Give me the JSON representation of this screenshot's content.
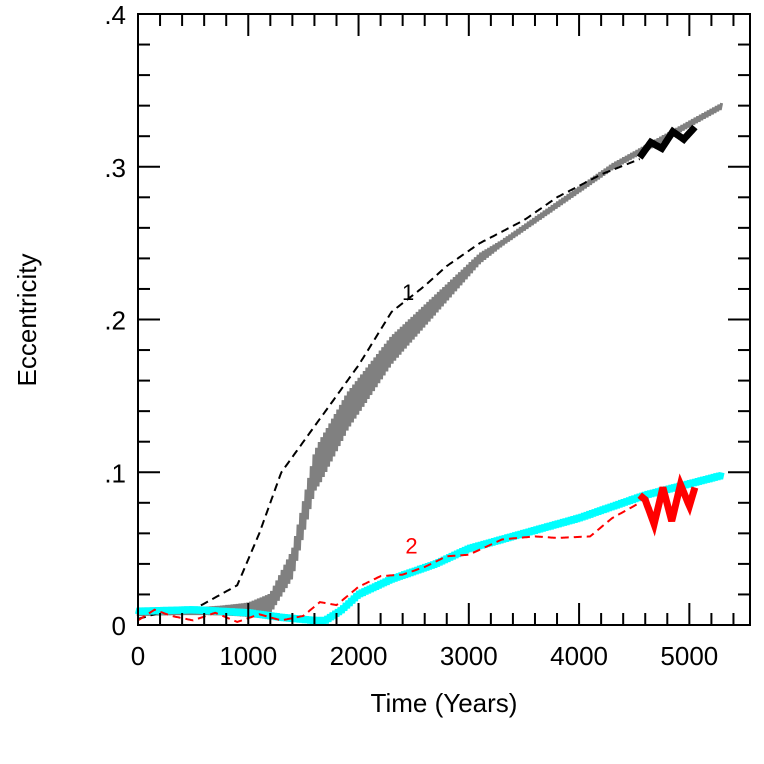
{
  "chart_data": {
    "type": "line",
    "title": "",
    "xlabel": "Time (Years)",
    "ylabel": "Eccentricity",
    "xlim": [
      0,
      5550
    ],
    "ylim": [
      0,
      0.4
    ],
    "xticks": [
      0,
      1000,
      2000,
      3000,
      4000,
      5000
    ],
    "xtick_labels": [
      "0",
      "1000",
      "2000",
      "3000",
      "4000",
      "5000"
    ],
    "yticks": [
      0,
      0.1,
      0.2,
      0.3,
      0.4
    ],
    "ytick_labels": [
      "0",
      ".1",
      ".2",
      ".3",
      ".4"
    ],
    "grid": false,
    "annotations": [
      {
        "text": "1",
        "x": 2450,
        "y": 0.218,
        "color": "#000000"
      },
      {
        "text": "2",
        "x": 2480,
        "y": 0.052,
        "color": "#ff0000"
      }
    ],
    "series": [
      {
        "style": "gray-oscillating",
        "color": "#808080",
        "x": [
          0,
          500,
          1000,
          1200,
          1400,
          1600,
          1900,
          2300,
          2700,
          3100,
          3700,
          4300,
          4800,
          5300
        ],
        "y": [
          0.008,
          0.009,
          0.01,
          0.014,
          0.04,
          0.1,
          0.14,
          0.18,
          0.21,
          0.24,
          0.27,
          0.3,
          0.32,
          0.34
        ]
      },
      {
        "style": "black-dashed",
        "color": "#000000",
        "x": [
          0,
          200,
          500,
          700,
          900,
          1100,
          1300,
          1600,
          2000,
          2300,
          2600,
          2800,
          3100,
          3500,
          3800,
          4200,
          4550
        ],
        "y": [
          0.004,
          0.008,
          0.01,
          0.018,
          0.026,
          0.06,
          0.1,
          0.13,
          0.17,
          0.205,
          0.222,
          0.235,
          0.25,
          0.265,
          0.28,
          0.295,
          0.305
        ]
      },
      {
        "style": "black-thick-wave",
        "color": "#000000",
        "x": [
          4550,
          4650,
          4750,
          4850,
          4950,
          5050
        ],
        "y": [
          0.306,
          0.316,
          0.312,
          0.323,
          0.318,
          0.326
        ]
      },
      {
        "style": "cyan-oscillating",
        "color": "#00ffff",
        "x": [
          0,
          500,
          1000,
          1300,
          1600,
          1700,
          1850,
          2000,
          2300,
          2700,
          3000,
          3500,
          4000,
          4600,
          5300
        ],
        "y": [
          0.009,
          0.01,
          0.008,
          0.005,
          0.003,
          0.003,
          0.01,
          0.02,
          0.03,
          0.04,
          0.05,
          0.06,
          0.07,
          0.085,
          0.098
        ]
      },
      {
        "style": "red-dashed",
        "color": "#ff0000",
        "x": [
          0,
          150,
          300,
          500,
          700,
          900,
          1100,
          1300,
          1500,
          1650,
          1800,
          2000,
          2200,
          2400,
          2600,
          2800,
          3000,
          3300,
          3600,
          3800,
          4100,
          4300,
          4550
        ],
        "y": [
          0.003,
          0.01,
          0.006,
          0.003,
          0.008,
          0.002,
          0.007,
          0.003,
          0.006,
          0.015,
          0.013,
          0.025,
          0.032,
          0.033,
          0.038,
          0.045,
          0.046,
          0.056,
          0.058,
          0.057,
          0.058,
          0.07,
          0.08
        ]
      },
      {
        "style": "red-thick-wave",
        "color": "#ff0000",
        "x": [
          4550,
          4600,
          4680,
          4760,
          4840,
          4920,
          5000,
          5050
        ],
        "y": [
          0.085,
          0.082,
          0.066,
          0.09,
          0.068,
          0.092,
          0.078,
          0.09
        ]
      }
    ]
  }
}
